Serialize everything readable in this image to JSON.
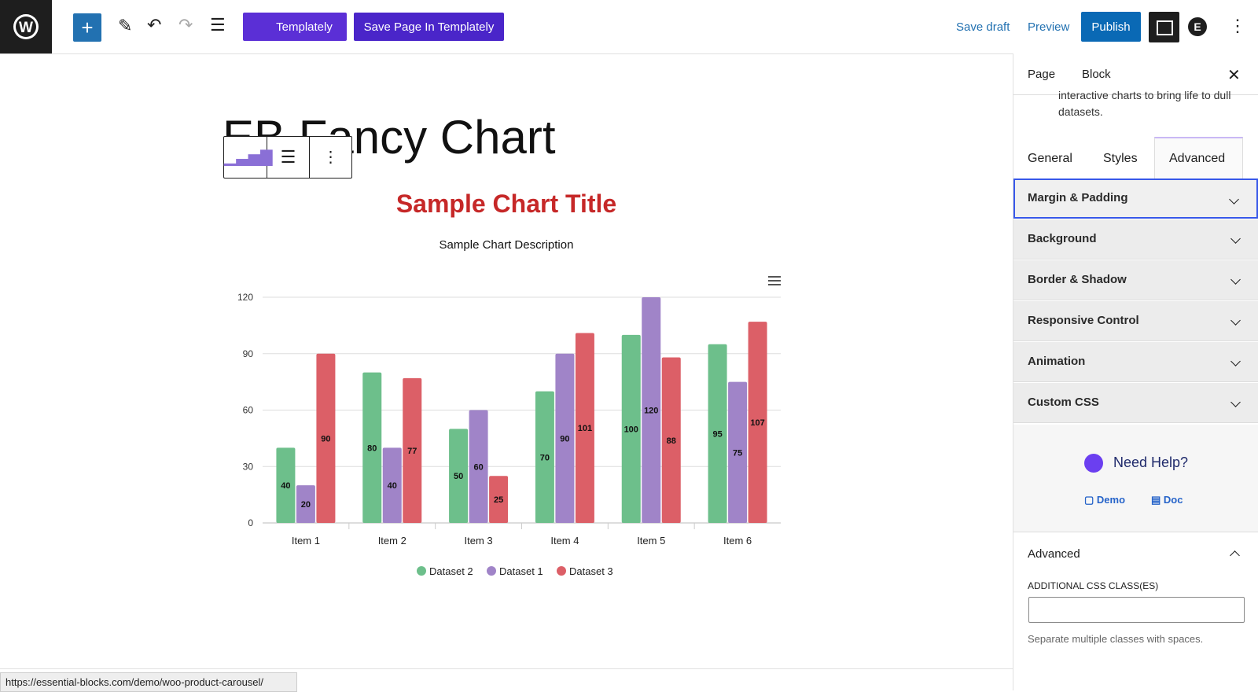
{
  "toolbar": {
    "templately": "Templately",
    "save_in_templately": "Save Page In Templately",
    "save_draft": "Save draft",
    "preview": "Preview",
    "publish": "Publish"
  },
  "editor": {
    "page_title": "EB Fancy Chart"
  },
  "chart_data": {
    "type": "bar",
    "title": "Sample Chart Title",
    "subtitle": "Sample Chart Description",
    "categories": [
      "Item 1",
      "Item 2",
      "Item 3",
      "Item 4",
      "Item 5",
      "Item 6"
    ],
    "series": [
      {
        "name": "Dataset 2",
        "color": "#6dbf8b",
        "values": [
          40,
          80,
          50,
          70,
          100,
          95
        ]
      },
      {
        "name": "Dataset 1",
        "color": "#a084c8",
        "values": [
          20,
          40,
          60,
          90,
          120,
          75
        ]
      },
      {
        "name": "Dataset 3",
        "color": "#dc5f67",
        "values": [
          90,
          77,
          25,
          101,
          88,
          107
        ]
      }
    ],
    "ylim": [
      0,
      120
    ],
    "yticks": [
      0,
      30,
      60,
      90,
      120
    ],
    "grid": true,
    "legend": "bottom",
    "data_labels": true
  },
  "sidebar": {
    "tabs": [
      "Page",
      "Block"
    ],
    "description": "interactive charts to bring life to dull datasets.",
    "block_tabs": [
      "General",
      "Styles",
      "Advanced"
    ],
    "panels": [
      "Margin & Padding",
      "Background",
      "Border & Shadow",
      "Responsive Control",
      "Animation",
      "Custom CSS"
    ],
    "help": {
      "title": "Need Help?",
      "demo": "Demo",
      "doc": "Doc"
    },
    "advanced": {
      "title": "Advanced",
      "field_label": "ADDITIONAL CSS CLASS(ES)",
      "hint": "Separate multiple classes with spaces."
    }
  },
  "status_bar": {
    "url": "https://essential-blocks.com/demo/woo-product-carousel/"
  }
}
